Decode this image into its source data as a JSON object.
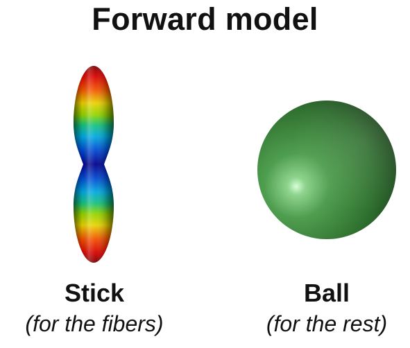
{
  "title": "Forward model",
  "models": [
    {
      "name": "Stick",
      "description": "(for the fibers)",
      "shape": "peanut-stick",
      "colormap": "jet"
    },
    {
      "name": "Ball",
      "description": "(for the rest)",
      "shape": "sphere",
      "color": "#3f8f3f"
    }
  ]
}
